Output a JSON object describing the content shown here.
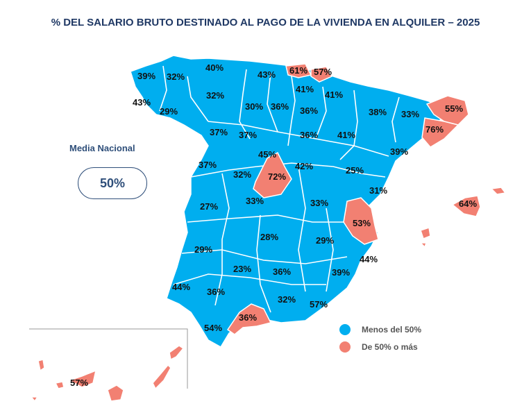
{
  "title": "% DEL SALARIO BRUTO DESTINADO AL PAGO DE LA VIVIENDA EN ALQUILER – 2025",
  "media": {
    "label": "Media Nacional",
    "value": "50%"
  },
  "colors": {
    "below": "#00aeef",
    "above": "#f28072",
    "border": "#ffffff",
    "text": "#1f3864"
  },
  "legend": [
    {
      "label": "Menos del 50%",
      "color": "#00aeef"
    },
    {
      "label": "De 50% o más",
      "color": "#f28072"
    }
  ],
  "provinces": [
    {
      "value": "39%",
      "above": false
    },
    {
      "value": "32%",
      "above": false
    },
    {
      "value": "40%",
      "above": false
    },
    {
      "value": "43%",
      "above": false
    },
    {
      "value": "61%",
      "above": true
    },
    {
      "value": "57%",
      "above": true
    },
    {
      "value": "43%",
      "above": false
    },
    {
      "value": "41%",
      "above": false
    },
    {
      "value": "41%",
      "above": false
    },
    {
      "value": "29%",
      "above": false
    },
    {
      "value": "32%",
      "above": false
    },
    {
      "value": "30%",
      "above": false
    },
    {
      "value": "36%",
      "above": false
    },
    {
      "value": "36%",
      "above": false
    },
    {
      "value": "38%",
      "above": false
    },
    {
      "value": "33%",
      "above": false
    },
    {
      "value": "55%",
      "above": true
    },
    {
      "value": "37%",
      "above": false
    },
    {
      "value": "37%",
      "above": false
    },
    {
      "value": "36%",
      "above": false
    },
    {
      "value": "41%",
      "above": false
    },
    {
      "value": "76%",
      "above": true
    },
    {
      "value": "45%",
      "above": false
    },
    {
      "value": "39%",
      "above": false
    },
    {
      "value": "37%",
      "above": false
    },
    {
      "value": "32%",
      "above": false
    },
    {
      "value": "72%",
      "above": true
    },
    {
      "value": "42%",
      "above": false
    },
    {
      "value": "25%",
      "above": false
    },
    {
      "value": "31%",
      "above": false
    },
    {
      "value": "27%",
      "above": false
    },
    {
      "value": "33%",
      "above": false
    },
    {
      "value": "33%",
      "above": false
    },
    {
      "value": "53%",
      "above": true
    },
    {
      "value": "64%",
      "above": true
    },
    {
      "value": "28%",
      "above": false
    },
    {
      "value": "29%",
      "above": false
    },
    {
      "value": "29%",
      "above": false
    },
    {
      "value": "44%",
      "above": false
    },
    {
      "value": "23%",
      "above": false
    },
    {
      "value": "36%",
      "above": false
    },
    {
      "value": "39%",
      "above": false
    },
    {
      "value": "44%",
      "above": false
    },
    {
      "value": "36%",
      "above": false
    },
    {
      "value": "32%",
      "above": false
    },
    {
      "value": "57%",
      "above": true
    },
    {
      "value": "36%",
      "above": false
    },
    {
      "value": "54%",
      "above": true
    },
    {
      "value": "57%",
      "above": true
    }
  ]
}
